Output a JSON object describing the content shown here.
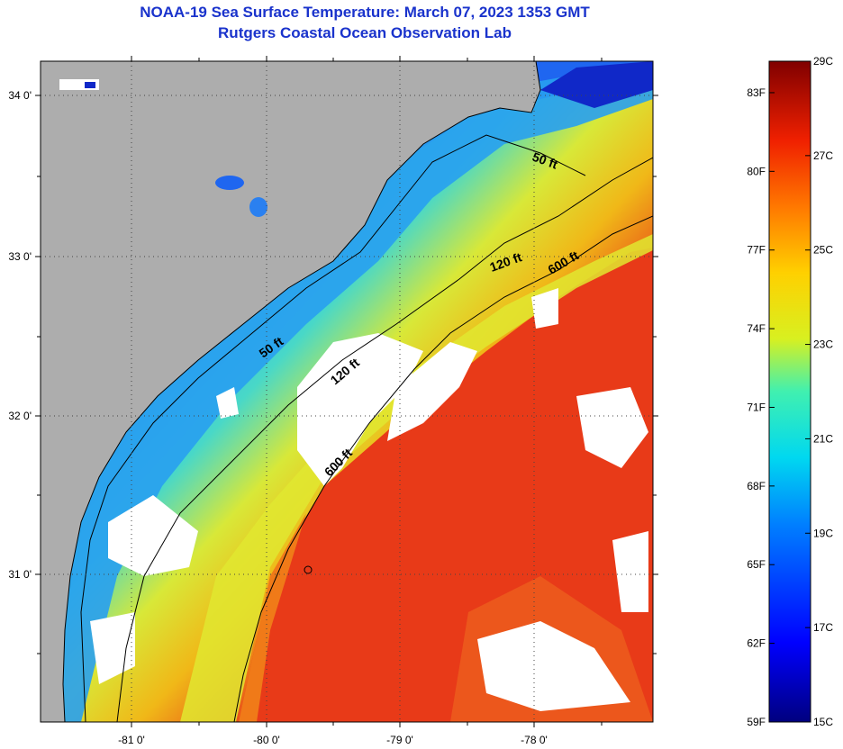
{
  "header": {
    "title": "NOAA-19 Sea Surface Temperature:  March 07, 2023 1353 GMT",
    "subtitle": "Rutgers Coastal Ocean Observation Lab"
  },
  "map": {
    "lat_labels": [
      "34 0'",
      "33 0'",
      "32 0'",
      "31 0'"
    ],
    "lon_labels": [
      "-81 0'",
      "-80 0'",
      "-79 0'",
      "-78 0'"
    ],
    "depth_contours": [
      {
        "label": "50 ft"
      },
      {
        "label": "120 ft"
      },
      {
        "label": "600 ft"
      }
    ],
    "contour_labels": [
      "50 ft",
      "120 ft",
      "600 ft",
      "50 ft",
      "120 ft",
      "600 ft"
    ],
    "colors": {
      "land": "#adadad",
      "clouds": "#ffffff",
      "contour": "#000000"
    }
  },
  "colorbar": {
    "fahrenheit_labels": [
      "83F",
      "80F",
      "77F",
      "74F",
      "71F",
      "68F",
      "65F",
      "62F",
      "59F"
    ],
    "celsius_labels": [
      "29C",
      "27C",
      "25C",
      "23C",
      "21C",
      "19C",
      "17C",
      "15C"
    ],
    "range_c": [
      15,
      29
    ]
  }
}
